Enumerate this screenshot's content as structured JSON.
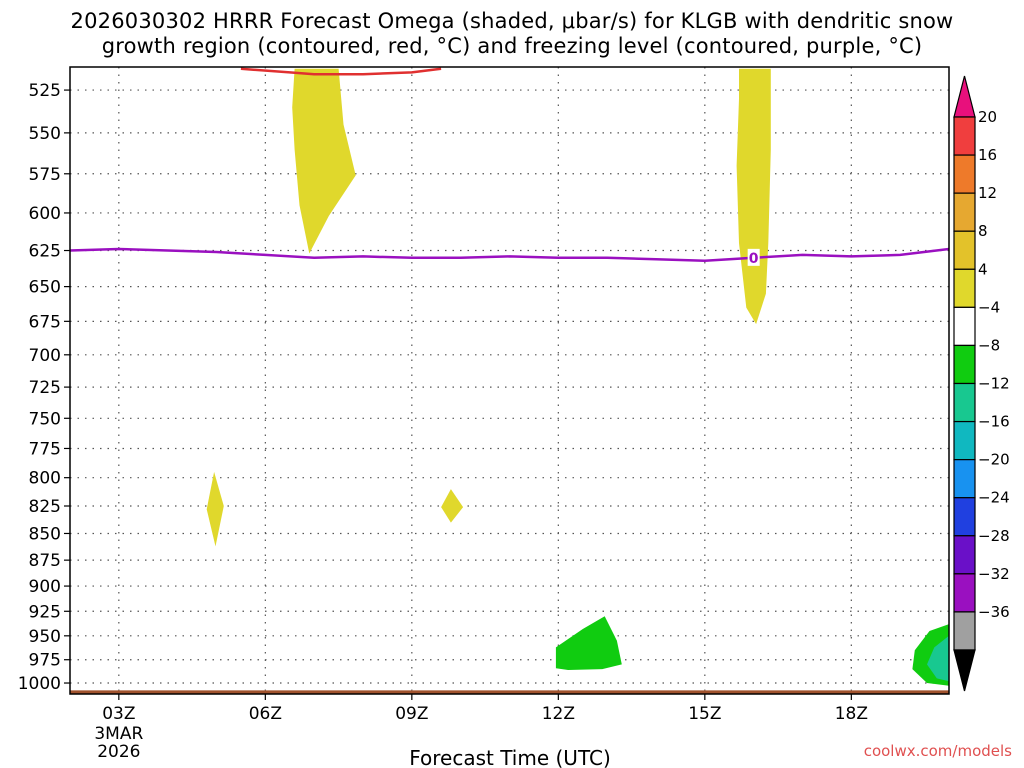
{
  "header": {
    "title_line1": "2026030302 HRRR Forecast Omega (shaded, μbar/s) for KLGB with dendritic snow",
    "title_line2": "growth region (contoured, red, °C) and freezing level (contoured, purple, °C)"
  },
  "footer": {
    "credit": "coolwx.com/models"
  },
  "chart_data": {
    "type": "heatmap",
    "title": "2026030302 HRRR Forecast Omega (shaded, μbar/s) for KLGB with dendritic snow growth region (contoured, red, °C) and freezing level (contoured, purple, °C)",
    "xlabel": "Forecast Time (UTC)",
    "ylabel": "",
    "x_unit": "hours since 2026-03-03 02Z",
    "xlim": [
      0,
      18
    ],
    "ylim": [
      1012,
      512
    ],
    "y_scale": "log-pressure (hPa), inverted",
    "grid": true,
    "x_ticks": [
      {
        "x": 1,
        "label": "03Z",
        "sublabels": [
          "3MAR",
          "2026"
        ]
      },
      {
        "x": 4,
        "label": "06Z"
      },
      {
        "x": 7,
        "label": "09Z"
      },
      {
        "x": 10,
        "label": "12Z"
      },
      {
        "x": 13,
        "label": "15Z"
      },
      {
        "x": 16,
        "label": "18Z"
      }
    ],
    "y_ticks": [
      525,
      550,
      575,
      600,
      625,
      650,
      675,
      700,
      725,
      750,
      775,
      800,
      825,
      850,
      875,
      900,
      925,
      950,
      975,
      1000
    ],
    "colorbar": {
      "labels": [
        "20",
        "16",
        "12",
        "8",
        "4",
        "-4",
        "-8",
        "-12",
        "-16",
        "-20",
        "-24",
        "-28",
        "-32",
        "-36"
      ],
      "bins": [
        {
          "color": "#f03e3e"
        },
        {
          "color": "#ee7a2a"
        },
        {
          "color": "#e6a830"
        },
        {
          "color": "#e3c22a"
        },
        {
          "color": "#e0d82c"
        },
        {
          "color": "#ffffff"
        },
        {
          "color": "#10cc10"
        },
        {
          "color": "#18c890"
        },
        {
          "color": "#10b8c0"
        },
        {
          "color": "#1892f0"
        },
        {
          "color": "#2040e0"
        },
        {
          "color": "#6a10c8"
        },
        {
          "color": "#9a10c0"
        },
        {
          "color": "#a0a0a0"
        }
      ],
      "over_color": "#e8107c",
      "under_color": "#000000"
    },
    "shaded_regions": [
      {
        "value_class": "4 to 8",
        "color": "#e0d82c",
        "points": [
          [
            4.6,
            513
          ],
          [
            5.5,
            513
          ],
          [
            5.6,
            545
          ],
          [
            5.85,
            576
          ],
          [
            5.3,
            602
          ],
          [
            4.9,
            627
          ],
          [
            4.7,
            595
          ],
          [
            4.6,
            560
          ],
          [
            4.55,
            535
          ]
        ]
      },
      {
        "value_class": "4 to 8",
        "color": "#e0d82c",
        "points": [
          [
            13.7,
            513
          ],
          [
            14.35,
            513
          ],
          [
            14.35,
            560
          ],
          [
            14.3,
            620
          ],
          [
            14.25,
            655
          ],
          [
            14.05,
            677
          ],
          [
            13.85,
            665
          ],
          [
            13.7,
            620
          ],
          [
            13.65,
            570
          ],
          [
            13.7,
            530
          ]
        ]
      },
      {
        "value_class": "4 to 8",
        "color": "#e0d82c",
        "points": [
          [
            2.95,
            795
          ],
          [
            3.15,
            825
          ],
          [
            2.98,
            862
          ],
          [
            2.8,
            828
          ]
        ]
      },
      {
        "value_class": "4 to 8",
        "color": "#e0d82c",
        "points": [
          [
            7.8,
            810
          ],
          [
            8.05,
            826
          ],
          [
            7.8,
            840
          ],
          [
            7.6,
            826
          ]
        ]
      },
      {
        "value_class": "-8 to -4",
        "color": "#10cc10",
        "points": [
          [
            9.95,
            962
          ],
          [
            10.5,
            943
          ],
          [
            10.95,
            930
          ],
          [
            11.2,
            955
          ],
          [
            11.3,
            980
          ],
          [
            10.9,
            985
          ],
          [
            10.2,
            986
          ],
          [
            9.95,
            984
          ]
        ]
      },
      {
        "value_class": "-8 to -4",
        "color": "#10cc10",
        "points": [
          [
            18,
            938
          ],
          [
            17.6,
            945
          ],
          [
            17.3,
            965
          ],
          [
            17.25,
            985
          ],
          [
            17.55,
            1000
          ],
          [
            18,
            1003
          ]
        ]
      },
      {
        "value_class": "-12 to -8",
        "color": "#18c890",
        "points": [
          [
            18,
            950
          ],
          [
            17.7,
            962
          ],
          [
            17.55,
            980
          ],
          [
            17.75,
            995
          ],
          [
            18,
            998
          ]
        ]
      }
    ],
    "contours": [
      {
        "field": "freezing level",
        "level": "0",
        "color": "#9a10c0",
        "points": [
          [
            0,
            625
          ],
          [
            1,
            624
          ],
          [
            2,
            625
          ],
          [
            3,
            626
          ],
          [
            4,
            628
          ],
          [
            5,
            630
          ],
          [
            6,
            629
          ],
          [
            7,
            630
          ],
          [
            8,
            630
          ],
          [
            9,
            629
          ],
          [
            10,
            630
          ],
          [
            11,
            630
          ],
          [
            12,
            631
          ],
          [
            13,
            632
          ],
          [
            14,
            630
          ],
          [
            15,
            628
          ],
          [
            16,
            629
          ],
          [
            17,
            628
          ],
          [
            18,
            624
          ]
        ]
      },
      {
        "field": "dendritic snow growth region",
        "color": "#e03030",
        "points": [
          [
            3.5,
            513
          ],
          [
            4.5,
            515
          ],
          [
            5,
            516
          ],
          [
            6,
            516
          ],
          [
            7,
            515
          ],
          [
            7.6,
            513
          ]
        ]
      }
    ],
    "surface": {
      "color": "#a0522d",
      "pressure": 1008
    }
  }
}
